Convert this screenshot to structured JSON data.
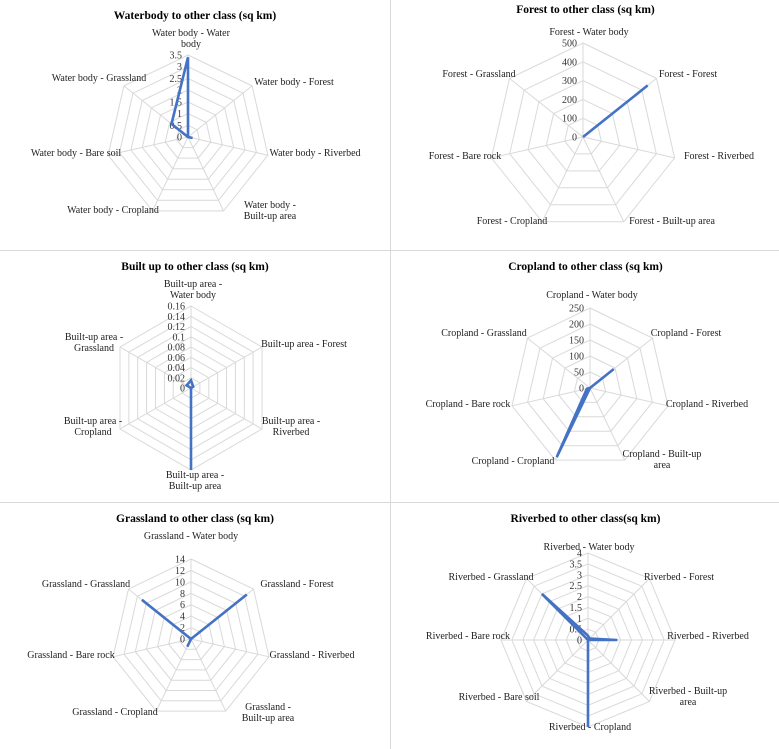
{
  "chart_data": [
    {
      "type": "radar",
      "title": "Waterbody to other class (sq km)",
      "categories": [
        "Water body - Water body",
        "Water body - Forest",
        "Water body - Riverbed",
        "Water body - Built-up area",
        "Water body - Cropland",
        "Water body - Bare soil",
        "Water body - Grassland"
      ],
      "values": [
        3.4,
        0.0,
        0.2,
        0.0,
        0.0,
        0.0,
        0.9
      ],
      "rlim": [
        0,
        3.5
      ],
      "tick_labels": [
        "0",
        "0.5",
        "1",
        "1.5",
        "2",
        "2.5",
        "3",
        "3.5"
      ],
      "series_color": "#4472c4",
      "grid": true
    },
    {
      "type": "radar",
      "title": "Forest to other class (sq km)",
      "categories": [
        "Forest - Water body",
        "Forest - Forest",
        "Forest - Riverbed",
        "Forest - Built-up area",
        "Forest - Cropland",
        "Forest - Bare rock",
        "Forest - Grassland"
      ],
      "values": [
        0,
        440,
        0,
        0,
        0,
        0,
        0
      ],
      "rlim": [
        0,
        500
      ],
      "tick_labels": [
        "0",
        "100",
        "200",
        "300",
        "400",
        "500"
      ],
      "series_color": "#4472c4",
      "grid": true
    },
    {
      "type": "radar",
      "title": "Built up to other class (sq km)",
      "categories": [
        "Built-up area - Water body",
        "Built-up area - Forest",
        "Built-up area - Riverbed",
        "Built-up area - Built-up area",
        "Built-up area - Cropland",
        "Built-up area - Grassland"
      ],
      "values": [
        0.015,
        0.005,
        0.0,
        0.16,
        0.0,
        0.01
      ],
      "rlim": [
        0,
        0.16
      ],
      "tick_labels": [
        "0",
        "0.02",
        "0.04",
        "0.06",
        "0.08",
        "0.1",
        "0.12",
        "0.14",
        "0.16"
      ],
      "series_color": "#4472c4",
      "grid": true
    },
    {
      "type": "radar",
      "title": "Cropland to other class (sq km)",
      "categories": [
        "Cropland - Water body",
        "Cropland - Forest",
        "Cropland - Riverbed",
        "Cropland - Built-up area",
        "Cropland - Cropland",
        "Cropland - Bare rock",
        "Cropland - Grassland"
      ],
      "values": [
        0,
        95,
        0,
        0,
        240,
        10,
        0
      ],
      "rlim": [
        0,
        250
      ],
      "tick_labels": [
        "0",
        "50",
        "100",
        "150",
        "200",
        "250"
      ],
      "series_color": "#4472c4",
      "grid": true
    },
    {
      "type": "radar",
      "title": "Grassland to other class (sq km)",
      "categories": [
        "Grassland - Water body",
        "Grassland - Forest",
        "Grassland - Riverbed",
        "Grassland - Built-up area",
        "Grassland - Cropland",
        "Grassland - Bare rock",
        "Grassland - Grassland"
      ],
      "values": [
        0,
        12.5,
        0,
        0,
        1.5,
        0,
        11
      ],
      "rlim": [
        0,
        14
      ],
      "tick_labels": [
        "0",
        "2",
        "4",
        "6",
        "8",
        "10",
        "12",
        "14"
      ],
      "series_color": "#4472c4",
      "grid": true
    },
    {
      "type": "radar",
      "title": "Riverbed to other class(sq km)",
      "categories": [
        "Riverbed - Water body",
        "Riverbed - Forest",
        "Riverbed - Riverbed",
        "Riverbed - Built-up area",
        "Riverbed - Cropland",
        "Riverbed - Bare soil",
        "Riverbed - Bare rock",
        "Riverbed - Grassland"
      ],
      "values": [
        0.2,
        0.1,
        1.35,
        0.0,
        4.0,
        0.0,
        0.0,
        3.0
      ],
      "rlim": [
        0,
        4
      ],
      "tick_labels": [
        "0",
        "0.5",
        "1",
        "1.5",
        "2",
        "2.5",
        "3",
        "3.5",
        "4"
      ],
      "series_color": "#4472c4",
      "grid": true
    }
  ]
}
